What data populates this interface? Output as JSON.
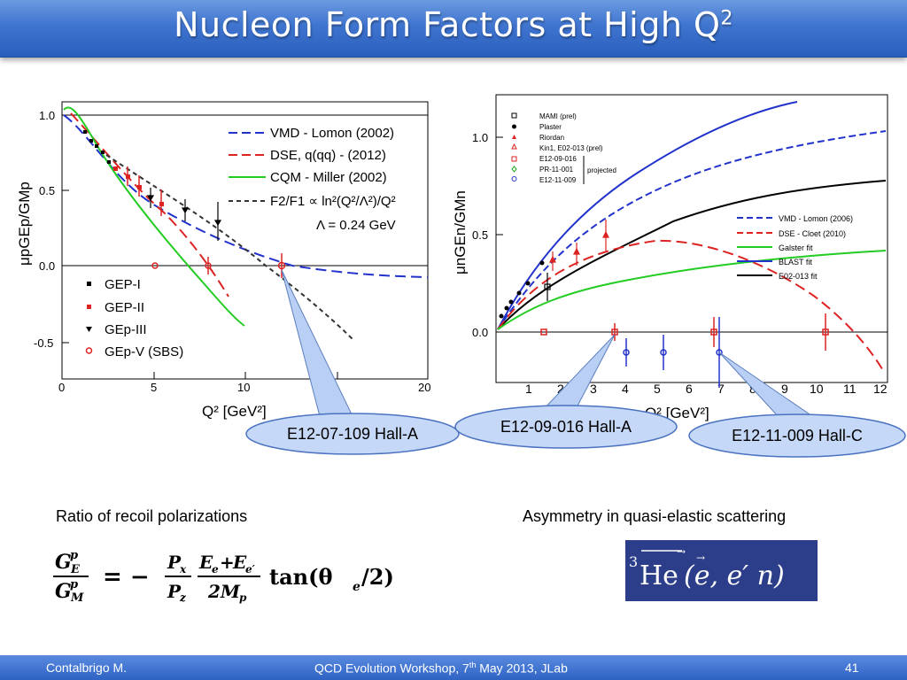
{
  "title": {
    "main": "Nucleon Form Factors at High Q",
    "sup": "2"
  },
  "left_plot": {
    "ylabel": "μpGEp/GMp",
    "xlabel": "Q² [GeV²]",
    "yticks": [
      "1.0",
      "0.5",
      "0.0",
      "-0.5"
    ],
    "xticks": [
      "0",
      "5",
      "10",
      "20"
    ],
    "curve_legend": [
      "VMD - Lomon (2002)",
      "DSE, q(qq) - (2012)",
      "CQM - Miller (2002)",
      "F2/F1 ∝ ln²(Q²/Λ²)/Q²",
      "Λ = 0.24 GeV"
    ],
    "data_legend": [
      "GEP-I",
      "GEP-II",
      "GEp-III",
      "GEp-V (SBS)"
    ]
  },
  "right_plot": {
    "ylabel": "μnGEn/GMn",
    "xlabel": "Q² [GeV²]",
    "yticks": [
      "1.0",
      "0.5",
      "0.0"
    ],
    "xticks": [
      "1",
      "2",
      "3",
      "4",
      "5",
      "6",
      "7",
      "8",
      "9",
      "10",
      "11",
      "12"
    ],
    "data_legend": [
      "MAMI (prel)",
      "Plaster",
      "Riordan",
      "Kin1, E02-013 (prel)",
      "E12-09-016",
      "PR-11-001",
      "E12-11-009"
    ],
    "projected_label": "projected",
    "curve_legend": [
      "VMD - Lomon (2006)",
      "DSE - Cloet (2010)",
      "Galster fit",
      "BLAST fit",
      "E02-013 fit"
    ]
  },
  "callouts": {
    "left": "E12-07-109 Hall-A",
    "middle": "E12-09-016  Hall-A",
    "right": "E12-11-009  Hall-C"
  },
  "captions": {
    "left": "Ratio of recoil polarizations",
    "right": "Asymmetry in quasi-elastic scattering"
  },
  "formula": {
    "lhs_num": "G",
    "lhs_num_sup": "p",
    "lhs_num_sub": "E",
    "lhs_den": "G",
    "lhs_den_sup": "p",
    "lhs_den_sub": "M",
    "eq": "= −",
    "p_num": "P",
    "p_num_sub": "x",
    "p_den": "P",
    "p_den_sub": "z",
    "e_num": "E",
    "e_num_sub": "e",
    "plus": "+",
    "e_num2": "E",
    "e_num2_sub": "e′",
    "e_den": "2M",
    "e_den_sub": "p",
    "tan": "tan(θ",
    "tan_sub": "e",
    "tan_end": "/2)"
  },
  "reaction": {
    "sup": "3",
    "nucleus": "He",
    "rest": "(e, e′ n)",
    "arrow": "→"
  },
  "footer": {
    "author": "Contalbrigo M.",
    "event_pre": "QCD Evolution Workshop, 7",
    "event_sup": "th",
    "event_post": " May 2013, JLab",
    "page": "41"
  }
}
